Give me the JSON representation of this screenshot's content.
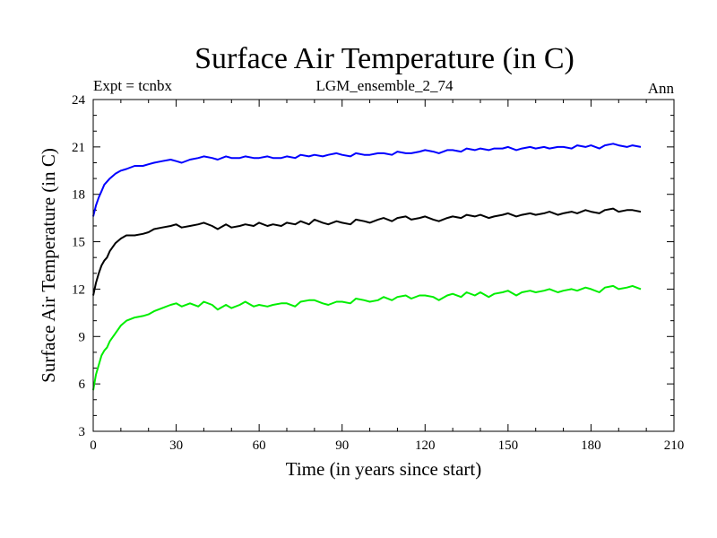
{
  "chart_data": {
    "type": "line",
    "title": "Surface Air Temperature (in C)",
    "left_label": "Expt = tcnbx",
    "center_label": "LGM_ensemble_2_74",
    "right_label": "Ann",
    "xlabel": "Time (in years since start)",
    "ylabel": "Surface Air Temperature (in C)",
    "xlim": [
      0,
      210
    ],
    "ylim": [
      3,
      24
    ],
    "xticks": [
      0,
      30,
      60,
      90,
      120,
      150,
      180,
      210
    ],
    "yticks": [
      3,
      6,
      9,
      12,
      15,
      18,
      21,
      24
    ],
    "x": [
      0,
      1,
      2,
      3,
      4,
      5,
      6,
      8,
      10,
      12,
      15,
      18,
      20,
      22,
      25,
      28,
      30,
      32,
      35,
      38,
      40,
      43,
      45,
      48,
      50,
      53,
      55,
      58,
      60,
      63,
      65,
      68,
      70,
      73,
      75,
      78,
      80,
      83,
      85,
      88,
      90,
      93,
      95,
      98,
      100,
      103,
      105,
      108,
      110,
      113,
      115,
      118,
      120,
      123,
      125,
      128,
      130,
      133,
      135,
      138,
      140,
      143,
      145,
      148,
      150,
      153,
      155,
      158,
      160,
      163,
      165,
      168,
      170,
      173,
      175,
      178,
      180,
      183,
      185,
      188,
      190,
      193,
      195,
      198
    ],
    "series": [
      {
        "name": "blue",
        "color": "#0000ff",
        "values": [
          16.6,
          17.3,
          17.8,
          18.2,
          18.6,
          18.8,
          19.0,
          19.3,
          19.5,
          19.6,
          19.8,
          19.8,
          19.9,
          20.0,
          20.1,
          20.2,
          20.1,
          20.0,
          20.2,
          20.3,
          20.4,
          20.3,
          20.2,
          20.4,
          20.3,
          20.3,
          20.4,
          20.3,
          20.3,
          20.4,
          20.3,
          20.3,
          20.4,
          20.3,
          20.5,
          20.4,
          20.5,
          20.4,
          20.5,
          20.6,
          20.5,
          20.4,
          20.6,
          20.5,
          20.5,
          20.6,
          20.6,
          20.5,
          20.7,
          20.6,
          20.6,
          20.7,
          20.8,
          20.7,
          20.6,
          20.8,
          20.8,
          20.7,
          20.9,
          20.8,
          20.9,
          20.8,
          20.9,
          20.9,
          21.0,
          20.8,
          20.9,
          21.0,
          20.9,
          21.0,
          20.9,
          21.0,
          21.0,
          20.9,
          21.1,
          21.0,
          21.1,
          20.9,
          21.1,
          21.2,
          21.1,
          21.0,
          21.1,
          21.0
        ]
      },
      {
        "name": "black",
        "color": "#000000",
        "values": [
          11.6,
          12.4,
          13.0,
          13.5,
          13.8,
          14.0,
          14.4,
          14.9,
          15.2,
          15.4,
          15.4,
          15.5,
          15.6,
          15.8,
          15.9,
          16.0,
          16.1,
          15.9,
          16.0,
          16.1,
          16.2,
          16.0,
          15.8,
          16.1,
          15.9,
          16.0,
          16.1,
          16.0,
          16.2,
          16.0,
          16.1,
          16.0,
          16.2,
          16.1,
          16.3,
          16.1,
          16.4,
          16.2,
          16.1,
          16.3,
          16.2,
          16.1,
          16.4,
          16.3,
          16.2,
          16.4,
          16.5,
          16.3,
          16.5,
          16.6,
          16.4,
          16.5,
          16.6,
          16.4,
          16.3,
          16.5,
          16.6,
          16.5,
          16.7,
          16.6,
          16.7,
          16.5,
          16.6,
          16.7,
          16.8,
          16.6,
          16.7,
          16.8,
          16.7,
          16.8,
          16.9,
          16.7,
          16.8,
          16.9,
          16.8,
          17.0,
          16.9,
          16.8,
          17.0,
          17.1,
          16.9,
          17.0,
          17.0,
          16.9
        ]
      },
      {
        "name": "green",
        "color": "#00ee00",
        "values": [
          5.6,
          6.6,
          7.2,
          7.8,
          8.1,
          8.3,
          8.7,
          9.2,
          9.7,
          10.0,
          10.2,
          10.3,
          10.4,
          10.6,
          10.8,
          11.0,
          11.1,
          10.9,
          11.1,
          10.9,
          11.2,
          11.0,
          10.7,
          11.0,
          10.8,
          11.0,
          11.2,
          10.9,
          11.0,
          10.9,
          11.0,
          11.1,
          11.1,
          10.9,
          11.2,
          11.3,
          11.3,
          11.1,
          11.0,
          11.2,
          11.2,
          11.1,
          11.4,
          11.3,
          11.2,
          11.3,
          11.5,
          11.3,
          11.5,
          11.6,
          11.4,
          11.6,
          11.6,
          11.5,
          11.3,
          11.6,
          11.7,
          11.5,
          11.8,
          11.6,
          11.8,
          11.5,
          11.7,
          11.8,
          11.9,
          11.6,
          11.8,
          11.9,
          11.8,
          11.9,
          12.0,
          11.8,
          11.9,
          12.0,
          11.9,
          12.1,
          12.0,
          11.8,
          12.1,
          12.2,
          12.0,
          12.1,
          12.2,
          12.0
        ]
      }
    ]
  }
}
